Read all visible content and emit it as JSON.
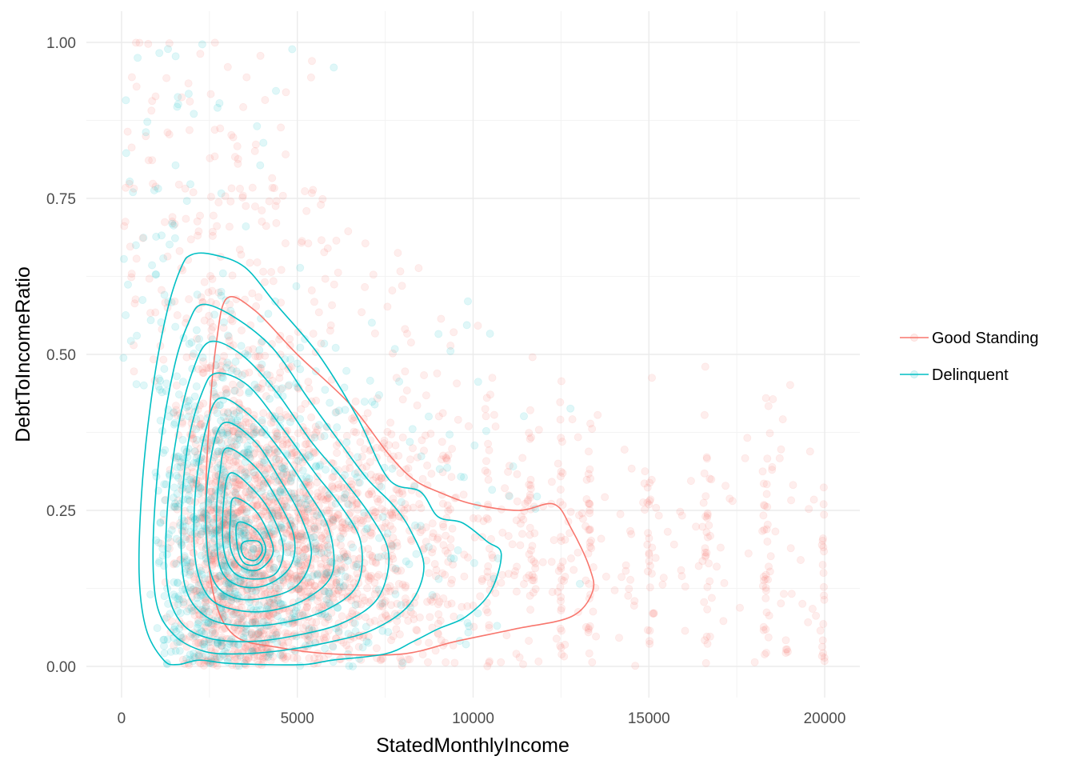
{
  "chart_data": {
    "type": "scatter",
    "xlabel": "StatedMonthlyIncome",
    "ylabel": "DebtToIncomeRatio",
    "xlim": [
      -1000,
      21000
    ],
    "ylim": [
      -0.05,
      1.05
    ],
    "x_ticks": [
      0,
      5000,
      10000,
      15000,
      20000
    ],
    "x_tick_labels": [
      "0",
      "5000",
      "10000",
      "15000",
      "20000"
    ],
    "y_ticks": [
      0,
      0.25,
      0.5,
      0.75,
      1.0
    ],
    "y_tick_labels": [
      "0.00",
      "0.25",
      "0.50",
      "0.75",
      "1.00"
    ],
    "grid": true,
    "legend_position": "right",
    "series": [
      {
        "name": "Good Standing",
        "color": "#F8766D",
        "point_alpha": 0.12,
        "contours": [
          [
            [
              3000,
              0.59
            ],
            [
              3800,
              0.57
            ],
            [
              5000,
              0.5
            ],
            [
              6500,
              0.42
            ],
            [
              7600,
              0.34
            ],
            [
              8300,
              0.3
            ],
            [
              9000,
              0.28
            ],
            [
              10000,
              0.26
            ],
            [
              11300,
              0.25
            ],
            [
              12300,
              0.26
            ],
            [
              12800,
              0.22
            ],
            [
              13300,
              0.16
            ],
            [
              13400,
              0.12
            ],
            [
              12800,
              0.08
            ],
            [
              11200,
              0.06
            ],
            [
              9500,
              0.04
            ],
            [
              8000,
              0.02
            ],
            [
              6000,
              0.02
            ],
            [
              4500,
              0.03
            ],
            [
              3200,
              0.05
            ],
            [
              2600,
              0.12
            ],
            [
              2400,
              0.25
            ],
            [
              2500,
              0.4
            ],
            [
              2700,
              0.52
            ]
          ]
        ]
      },
      {
        "name": "Delinquent",
        "color": "#00BFC4",
        "point_alpha": 0.12,
        "contours": [
          [
            [
              2000,
              0.66
            ],
            [
              2600,
              0.66
            ],
            [
              3500,
              0.64
            ],
            [
              4400,
              0.58
            ],
            [
              5600,
              0.5
            ],
            [
              6700,
              0.4
            ],
            [
              7600,
              0.3
            ],
            [
              8500,
              0.28
            ],
            [
              9000,
              0.24
            ],
            [
              9700,
              0.23
            ],
            [
              10400,
              0.2
            ],
            [
              10800,
              0.18
            ],
            [
              10500,
              0.12
            ],
            [
              9800,
              0.08
            ],
            [
              9000,
              0.06
            ],
            [
              8300,
              0.04
            ],
            [
              7500,
              0.02
            ],
            [
              6000,
              0.01
            ],
            [
              5200,
              0.003
            ],
            [
              4000,
              0.003
            ],
            [
              3000,
              0.005
            ],
            [
              2200,
              0.01
            ],
            [
              1600,
              0.003
            ],
            [
              1200,
              0.01
            ],
            [
              700,
              0.06
            ],
            [
              500,
              0.15
            ],
            [
              600,
              0.3
            ],
            [
              900,
              0.45
            ],
            [
              1300,
              0.57
            ],
            [
              1700,
              0.64
            ]
          ],
          [
            [
              2300,
              0.58
            ],
            [
              3200,
              0.56
            ],
            [
              4300,
              0.51
            ],
            [
              5300,
              0.43
            ],
            [
              6200,
              0.36
            ],
            [
              7000,
              0.3
            ],
            [
              7700,
              0.26
            ],
            [
              8200,
              0.22
            ],
            [
              8600,
              0.16
            ],
            [
              8200,
              0.1
            ],
            [
              7200,
              0.06
            ],
            [
              6000,
              0.04
            ],
            [
              4500,
              0.025
            ],
            [
              3200,
              0.02
            ],
            [
              2300,
              0.025
            ],
            [
              1500,
              0.05
            ],
            [
              1000,
              0.1
            ],
            [
              900,
              0.2
            ],
            [
              1100,
              0.35
            ],
            [
              1500,
              0.48
            ],
            [
              1900,
              0.55
            ]
          ],
          [
            [
              2500,
              0.52
            ],
            [
              3400,
              0.5
            ],
            [
              4400,
              0.44
            ],
            [
              5400,
              0.36
            ],
            [
              6300,
              0.3
            ],
            [
              7100,
              0.24
            ],
            [
              7600,
              0.18
            ],
            [
              7300,
              0.11
            ],
            [
              6300,
              0.07
            ],
            [
              5000,
              0.05
            ],
            [
              3700,
              0.04
            ],
            [
              2500,
              0.045
            ],
            [
              1700,
              0.07
            ],
            [
              1300,
              0.13
            ],
            [
              1300,
              0.25
            ],
            [
              1600,
              0.38
            ],
            [
              2000,
              0.47
            ]
          ],
          [
            [
              2700,
              0.47
            ],
            [
              3600,
              0.45
            ],
            [
              4600,
              0.38
            ],
            [
              5500,
              0.31
            ],
            [
              6200,
              0.26
            ],
            [
              6800,
              0.2
            ],
            [
              6700,
              0.13
            ],
            [
              5800,
              0.09
            ],
            [
              4600,
              0.07
            ],
            [
              3400,
              0.065
            ],
            [
              2400,
              0.08
            ],
            [
              1800,
              0.13
            ],
            [
              1700,
              0.24
            ],
            [
              1900,
              0.36
            ],
            [
              2300,
              0.44
            ]
          ],
          [
            [
              2800,
              0.43
            ],
            [
              3700,
              0.4
            ],
            [
              4600,
              0.34
            ],
            [
              5300,
              0.28
            ],
            [
              5900,
              0.22
            ],
            [
              6000,
              0.15
            ],
            [
              5300,
              0.11
            ],
            [
              4300,
              0.09
            ],
            [
              3300,
              0.09
            ],
            [
              2500,
              0.11
            ],
            [
              2100,
              0.17
            ],
            [
              2100,
              0.28
            ],
            [
              2400,
              0.38
            ]
          ],
          [
            [
              2900,
              0.39
            ],
            [
              3800,
              0.36
            ],
            [
              4500,
              0.3
            ],
            [
              5100,
              0.24
            ],
            [
              5400,
              0.18
            ],
            [
              5000,
              0.13
            ],
            [
              4100,
              0.11
            ],
            [
              3200,
              0.11
            ],
            [
              2600,
              0.14
            ],
            [
              2400,
              0.22
            ],
            [
              2500,
              0.32
            ]
          ],
          [
            [
              3000,
              0.35
            ],
            [
              3800,
              0.32
            ],
            [
              4400,
              0.27
            ],
            [
              4900,
              0.21
            ],
            [
              4800,
              0.16
            ],
            [
              4100,
              0.13
            ],
            [
              3300,
              0.13
            ],
            [
              2800,
              0.16
            ],
            [
              2700,
              0.24
            ],
            [
              2800,
              0.31
            ]
          ],
          [
            [
              3100,
              0.31
            ],
            [
              3800,
              0.28
            ],
            [
              4300,
              0.24
            ],
            [
              4600,
              0.19
            ],
            [
              4400,
              0.15
            ],
            [
              3800,
              0.14
            ],
            [
              3200,
              0.15
            ],
            [
              2900,
              0.19
            ],
            [
              2900,
              0.26
            ]
          ],
          [
            [
              3200,
              0.27
            ],
            [
              3800,
              0.25
            ],
            [
              4200,
              0.21
            ],
            [
              4300,
              0.18
            ],
            [
              3900,
              0.155
            ],
            [
              3400,
              0.16
            ],
            [
              3100,
              0.19
            ],
            [
              3100,
              0.24
            ]
          ],
          [
            [
              3300,
              0.23
            ],
            [
              3800,
              0.22
            ],
            [
              4100,
              0.19
            ],
            [
              3900,
              0.165
            ],
            [
              3500,
              0.165
            ],
            [
              3300,
              0.19
            ]
          ],
          [
            [
              3500,
              0.2
            ],
            [
              3900,
              0.2
            ],
            [
              4000,
              0.185
            ],
            [
              3800,
              0.17
            ],
            [
              3500,
              0.175
            ],
            [
              3400,
              0.19
            ]
          ]
        ]
      }
    ]
  }
}
